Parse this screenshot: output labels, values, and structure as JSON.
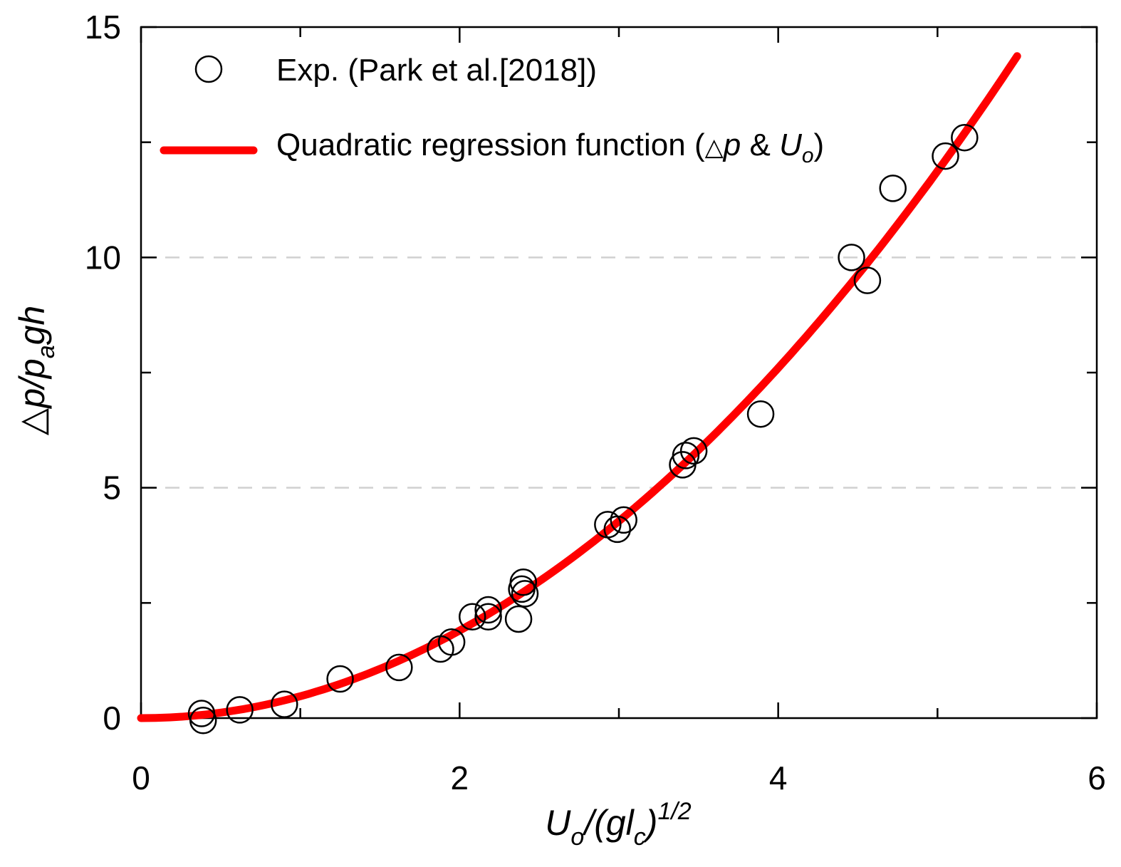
{
  "chart_data": {
    "type": "scatter",
    "xlabel": {
      "main": "U",
      "sub": "o",
      "mid": "/(gl",
      "sub2": "c",
      "close": ")",
      "sup": "1/2"
    },
    "ylabel": {
      "a": "△p/p",
      "sub": "a",
      "b": "gh"
    },
    "xlim": [
      0,
      6
    ],
    "ylim": [
      0,
      15
    ],
    "xticks": [
      0,
      2,
      4,
      6
    ],
    "yticks": [
      0,
      5,
      10,
      15
    ],
    "grid_y_dashed": [
      5,
      10
    ],
    "colors": {
      "fit": "#ff0000",
      "points": "#000000",
      "grid": "#d0d0d0"
    },
    "legend": {
      "position": "top-left",
      "entries": [
        {
          "label": "Exp. (Park et al.[2018])",
          "marker": "open-circle"
        },
        {
          "label_prefix": "Quadratic regression function (",
          "label_delta": "△",
          "label_p": "p",
          "label_amp": " & ",
          "label_U": "U",
          "label_sub": "o",
          "label_close": ")",
          "marker": "red-line"
        }
      ]
    },
    "series": [
      {
        "name": "Exp. (Park et al.[2018])",
        "points": [
          [
            0.38,
            0.1
          ],
          [
            0.39,
            -0.05
          ],
          [
            0.62,
            0.18
          ],
          [
            0.9,
            0.3
          ],
          [
            1.25,
            0.85
          ],
          [
            1.62,
            1.1
          ],
          [
            1.88,
            1.5
          ],
          [
            1.95,
            1.65
          ],
          [
            2.08,
            2.2
          ],
          [
            2.18,
            2.35
          ],
          [
            2.18,
            2.2
          ],
          [
            2.37,
            2.15
          ],
          [
            2.39,
            2.8
          ],
          [
            2.4,
            2.95
          ],
          [
            2.41,
            2.7
          ],
          [
            2.93,
            4.2
          ],
          [
            2.99,
            4.1
          ],
          [
            3.03,
            4.3
          ],
          [
            3.4,
            5.5
          ],
          [
            3.42,
            5.7
          ],
          [
            3.47,
            5.8
          ],
          [
            3.89,
            6.6
          ],
          [
            4.46,
            10.0
          ],
          [
            4.56,
            9.5
          ],
          [
            4.72,
            11.5
          ],
          [
            5.05,
            12.2
          ],
          [
            5.17,
            12.6
          ]
        ]
      },
      {
        "name": "Quadratic regression function (△p & Uo)",
        "function": "y = 0.475 * x^2",
        "x_range": [
          0,
          5.5
        ]
      }
    ]
  }
}
